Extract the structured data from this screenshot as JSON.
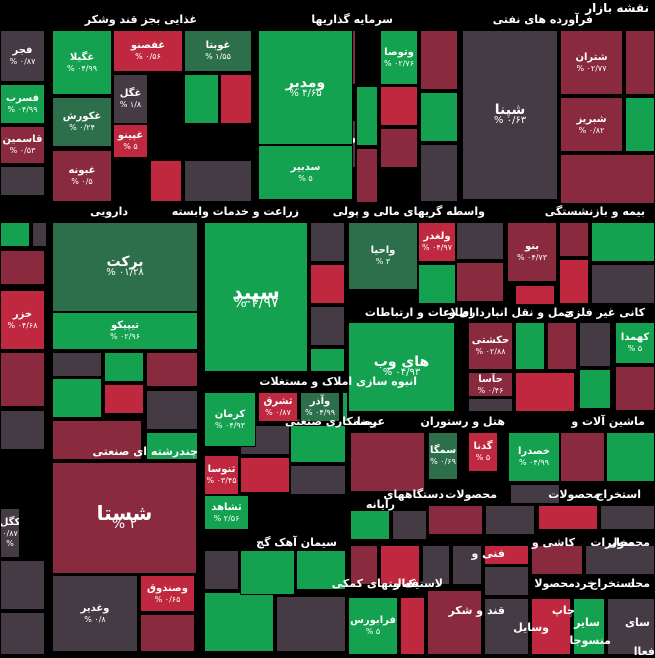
{
  "page_title": "نقشه بازار",
  "colors": {
    "green": "#14a150",
    "dark_green": "#2d6f4a",
    "red": "#c0283f",
    "dark_red": "#8a2a3f",
    "gray": "#453b45"
  },
  "sectors": [
    {
      "label": "غذایی بجز قند وشکر"
    },
    {
      "label": "سرمایه گذاریها"
    },
    {
      "label": "فرآورده های نفتی"
    },
    {
      "label": "دارویی"
    },
    {
      "label": "زراعت و خدمات وابسته"
    },
    {
      "label": "واسطه گریهای مالی و پولی"
    },
    {
      "label": "بیمه و بازنشستگی"
    },
    {
      "label": "اطلاعات و ارتباطات"
    },
    {
      "label": "حمل و نقل انبارداری و"
    },
    {
      "label": "کانی غیر فلزی"
    },
    {
      "label": "انبوه سازی املاک و مستغلات"
    },
    {
      "label": "عرضه"
    },
    {
      "label": "هتل و رستوران"
    },
    {
      "label": "پیمانکاری صنعتی"
    },
    {
      "label": "ماشین آلات و"
    },
    {
      "label": "چندرشته ای صنعتی"
    },
    {
      "label": "محصولات"
    },
    {
      "label": "دستگاههای"
    },
    {
      "label": "محصولات"
    },
    {
      "label": "استخراج"
    },
    {
      "label": "رایانه"
    },
    {
      "label": "سیمان آهک گچ"
    },
    {
      "label": "فنی و"
    },
    {
      "label": "کاشی و"
    },
    {
      "label": "مخابرات"
    },
    {
      "label": "محصول"
    },
    {
      "label": "لاستیک و"
    },
    {
      "label": "فعالیتهای کمکی"
    },
    {
      "label": "خرد"
    },
    {
      "label": "محد"
    },
    {
      "label": "استخراج"
    },
    {
      "label": "محصولا"
    },
    {
      "label": "قند و شکر"
    },
    {
      "label": "چاپ"
    },
    {
      "label": "سایر"
    },
    {
      "label": "سای"
    },
    {
      "label": "وسایل"
    },
    {
      "label": "منسوجا"
    },
    {
      "label": "فعاا"
    }
  ],
  "tiles": [
    {
      "symbol": "فجر",
      "change": "۰/۸۷ %"
    },
    {
      "symbol": "فسرب",
      "change": "۰۴/۹۹ %"
    },
    {
      "symbol": "قاسمین",
      "change": "۰/۵۳ %"
    },
    {
      "symbol": "غگیلا",
      "change": "۰۴/۹۹ %"
    },
    {
      "symbol": "غفصنو",
      "change": "۰/۵۶ %"
    },
    {
      "symbol": "غوبتا",
      "change": "۱/۵۵ %"
    },
    {
      "symbol": "غگل",
      "change": "۱/۸ %"
    },
    {
      "symbol": "غکورش",
      "change": "۰/۲۴ %"
    },
    {
      "symbol": "غپینو",
      "change": "۵ %"
    },
    {
      "symbol": "غبونه",
      "change": "۰/۵ %"
    },
    {
      "symbol": "ومدیر",
      "change": "۴/۶۵ %"
    },
    {
      "symbol": "سدبیر",
      "change": "۵ %"
    },
    {
      "symbol": "آریان",
      "change": "۰/۳۴ %"
    },
    {
      "symbol": "وتوصا",
      "change": "۰۲/۷۶ %"
    },
    {
      "symbol": "وسپهر",
      "change": "۰ %"
    },
    {
      "symbol": "شپنا",
      "change": "۰/۶۳ %"
    },
    {
      "symbol": "شتران",
      "change": "۰۲/۷۷ %"
    },
    {
      "symbol": "شبریز",
      "change": "۰/۸۲ %"
    },
    {
      "symbol": "برکت",
      "change": "۰۱/۲۸ %"
    },
    {
      "symbol": "تیپیکو",
      "change": "۰۲/۹۶ %"
    },
    {
      "symbol": "خزر",
      "change": "۰۴/۶۸ %"
    },
    {
      "symbol": "سپید",
      "change": "۴/۹۷ %"
    },
    {
      "symbol": "ولغدر",
      "change": "۰۴/۹۷ %"
    },
    {
      "symbol": "واحیا",
      "change": "۳ %"
    },
    {
      "symbol": "بنو",
      "change": "۰۴/۷۳ %"
    },
    {
      "symbol": "های وب",
      "change": "۰۴/۹۳ %"
    },
    {
      "symbol": "حکشتی",
      "change": "۰۲/۸۸ %"
    },
    {
      "symbol": "حآسا",
      "change": "۰/۴۶ %"
    },
    {
      "symbol": "کهمدا",
      "change": "۵ %"
    },
    {
      "symbol": "وآذر",
      "change": "۰۴/۹۹ %"
    },
    {
      "symbol": "ثشرق",
      "change": "۰/۸۷ %"
    },
    {
      "symbol": "کرمان",
      "change": "۰۴/۹۳ %"
    },
    {
      "symbol": "ثنوسا",
      "change": "۰۳/۴۵ %"
    },
    {
      "symbol": "ثشاهد",
      "change": "۲/۵۶ %"
    },
    {
      "symbol": "سمگا",
      "change": "۰/۶۹ %"
    },
    {
      "symbol": "گدنا",
      "change": "۵ %"
    },
    {
      "symbol": "خصدرا",
      "change": "۰۴/۹۹ %"
    },
    {
      "symbol": "شستا",
      "change": "۲ %"
    },
    {
      "symbol": "وصندوق",
      "change": "۰/۶۵ %"
    },
    {
      "symbol": "وغدیر",
      "change": "۰/۸ %"
    },
    {
      "symbol": "کگل",
      "change": "۰/۸۷ %"
    },
    {
      "symbol": "فرابورس",
      "change": "۵ %"
    }
  ]
}
